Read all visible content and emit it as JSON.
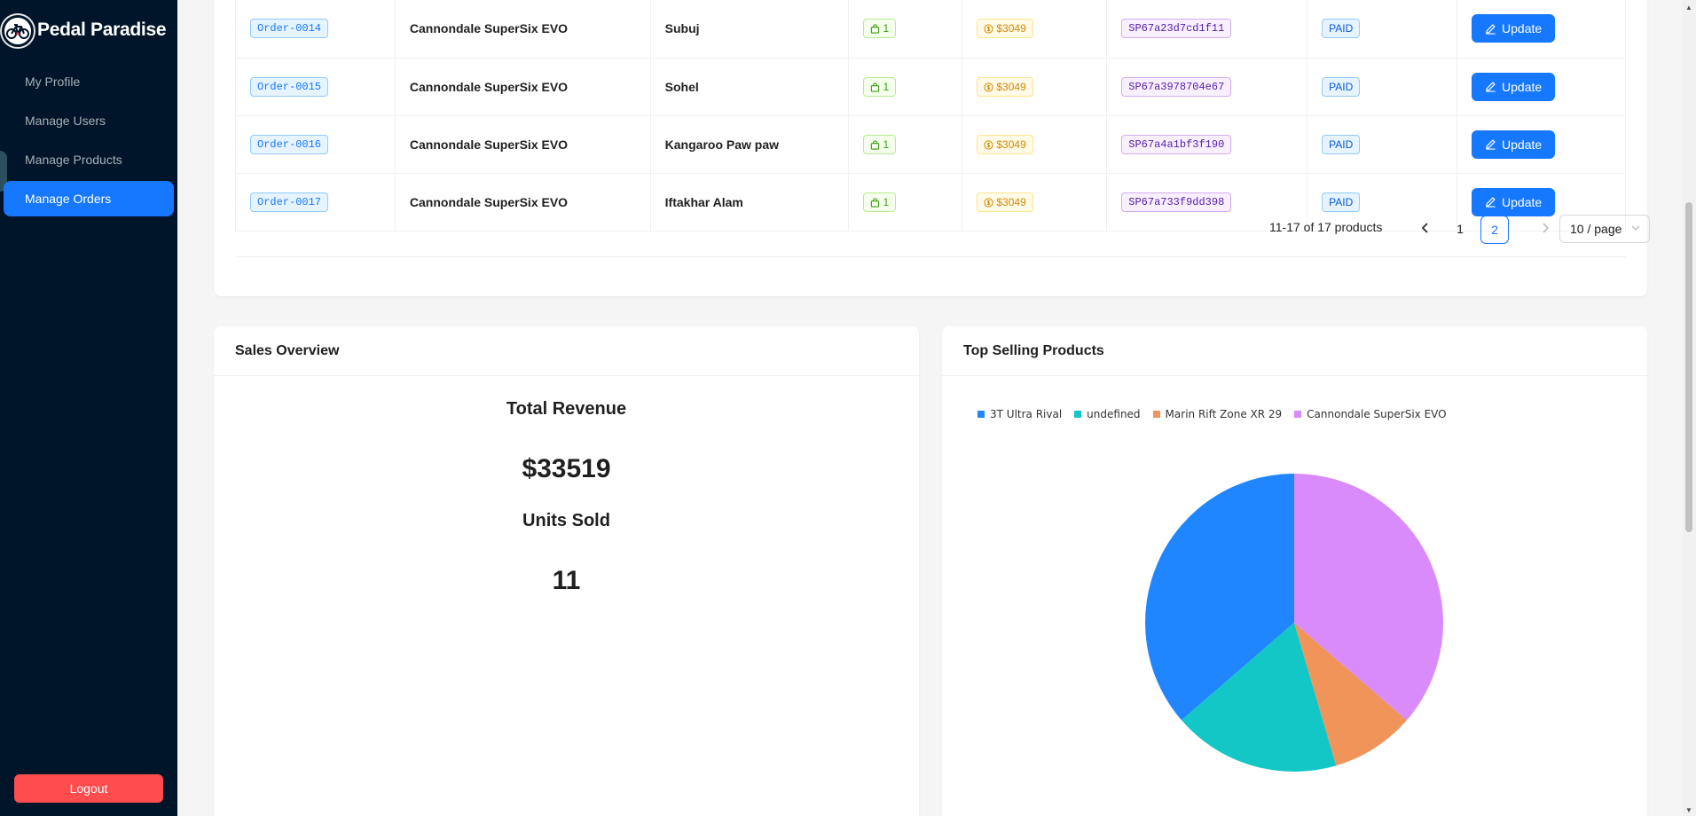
{
  "brand": {
    "name": "Pedal Paradise"
  },
  "sidebar": {
    "items": [
      {
        "label": "My Profile"
      },
      {
        "label": "Manage Users"
      },
      {
        "label": "Manage Products"
      },
      {
        "label": "Manage Orders"
      }
    ],
    "active_index": 3,
    "logout_label": "Logout"
  },
  "orders": {
    "rows": [
      {
        "order_id": "Order-0014",
        "product": "Cannondale SuperSix EVO",
        "customer": "Subuj",
        "qty": "1",
        "price": "$3049",
        "txn": "SP67a23d7cd1f11",
        "status": "PAID",
        "action": "Update"
      },
      {
        "order_id": "Order-0015",
        "product": "Cannondale SuperSix EVO",
        "customer": "Sohel",
        "qty": "1",
        "price": "$3049",
        "txn": "SP67a3978704e67",
        "status": "PAID",
        "action": "Update"
      },
      {
        "order_id": "Order-0016",
        "product": "Cannondale SuperSix EVO",
        "customer": "Kangaroo Paw paw",
        "qty": "1",
        "price": "$3049",
        "txn": "SP67a4a1bf3f190",
        "status": "PAID",
        "action": "Update"
      },
      {
        "order_id": "Order-0017",
        "product": "Cannondale SuperSix EVO",
        "customer": "Iftakhar Alam",
        "qty": "1",
        "price": "$3049",
        "txn": "SP67a733f9dd398",
        "status": "PAID",
        "action": "Update"
      }
    ],
    "pagination": {
      "total_text": "11-17 of 17 products",
      "pages": [
        "1",
        "2"
      ],
      "current_page": "2",
      "page_size": "10 / page"
    }
  },
  "sales_overview": {
    "title": "Sales Overview",
    "revenue_label": "Total Revenue",
    "revenue_value": "$33519",
    "units_label": "Units Sold",
    "units_value": "11"
  },
  "top_selling": {
    "title": "Top Selling Products"
  },
  "chart_data": {
    "type": "pie",
    "title": "Top Selling Products",
    "legend_position": "top-left",
    "categories": [
      "3T Ultra Rival",
      "undefined",
      "Marin Rift Zone XR 29",
      "Cannondale SuperSix EVO"
    ],
    "values": [
      4,
      2,
      1,
      4
    ],
    "colors": [
      "#1f86ff",
      "#13c7c7",
      "#f0945a",
      "#d98bfb"
    ]
  },
  "colors": {
    "primary": "#1677ff",
    "sidebar_bg": "#001529",
    "danger": "#ff4d4f"
  }
}
